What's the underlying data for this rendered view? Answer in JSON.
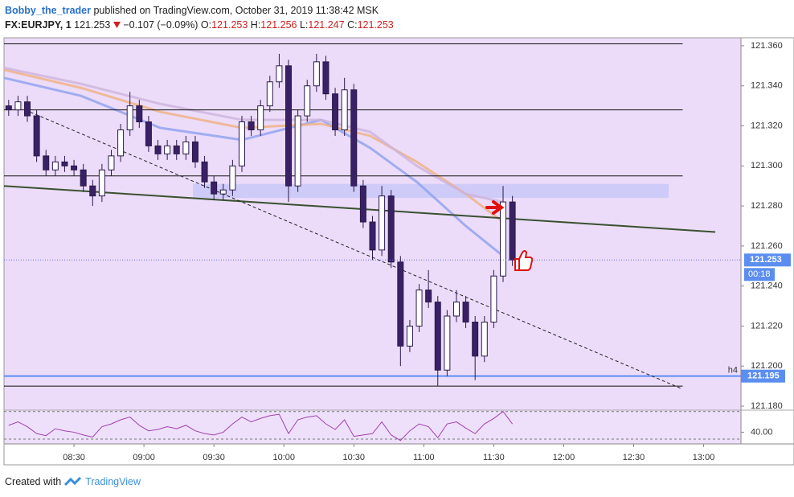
{
  "header": {
    "author": "Bobby_the_trader",
    "published": "published on TradingView.com, October 31, 2019 11:38:42 MSK"
  },
  "chart_data": [
    {
      "type": "candlestick",
      "symbol": "FX:EURJPY, 1",
      "last": 121.253,
      "change": "−0.107 (−0.09%)",
      "ohlc_summary": [
        {
          "label": "O:",
          "value": 121.253
        },
        {
          "label": "H:",
          "value": 121.256
        },
        {
          "label": "L:",
          "value": 121.247
        },
        {
          "label": "C:",
          "value": 121.253
        }
      ],
      "x": [
        482,
        486,
        490,
        494,
        498,
        502,
        506,
        510,
        514,
        518,
        522,
        526,
        530,
        534,
        538,
        542,
        546,
        550,
        554,
        558,
        562,
        566,
        570,
        574,
        578,
        582,
        586,
        590,
        594,
        598,
        602,
        606,
        610,
        614,
        618,
        622,
        626,
        630,
        634,
        638,
        642,
        646,
        650,
        654,
        658,
        662,
        666,
        670,
        674,
        678,
        682,
        686,
        690,
        694,
        698
      ],
      "open": [
        121.33,
        121.328,
        121.332,
        121.325,
        121.305,
        121.298,
        121.302,
        121.3,
        121.298,
        121.29,
        121.285,
        121.298,
        121.305,
        121.318,
        121.33,
        121.322,
        121.31,
        121.306,
        121.31,
        121.306,
        121.312,
        121.302,
        121.292,
        121.286,
        121.288,
        121.3,
        121.322,
        121.318,
        121.33,
        121.342,
        121.35,
        121.29,
        121.325,
        121.34,
        121.352,
        121.336,
        121.318,
        121.338,
        121.29,
        121.272,
        121.258,
        121.285,
        121.252,
        121.21,
        121.22,
        121.238,
        121.232,
        121.198,
        121.225,
        121.232,
        121.222,
        121.205,
        121.222,
        121.245,
        121.282
      ],
      "high": [
        121.333,
        121.335,
        121.335,
        121.328,
        121.308,
        121.305,
        121.305,
        121.303,
        121.301,
        121.293,
        121.301,
        121.308,
        121.321,
        121.337,
        121.333,
        121.325,
        121.313,
        121.313,
        121.313,
        121.315,
        121.315,
        121.305,
        121.295,
        121.291,
        121.303,
        121.325,
        121.325,
        121.333,
        121.345,
        121.356,
        121.353,
        121.328,
        121.343,
        121.356,
        121.355,
        121.339,
        121.344,
        121.341,
        121.293,
        121.275,
        121.29,
        121.288,
        121.255,
        121.223,
        121.241,
        121.248,
        121.235,
        121.228,
        121.238,
        121.235,
        121.225,
        121.225,
        121.248,
        121.29,
        121.285
      ],
      "low": [
        121.325,
        121.325,
        121.322,
        121.302,
        121.295,
        121.295,
        121.297,
        121.295,
        121.287,
        121.28,
        121.282,
        121.295,
        121.302,
        121.315,
        121.319,
        121.307,
        121.303,
        121.303,
        121.303,
        121.303,
        121.299,
        121.289,
        121.283,
        121.283,
        121.285,
        121.297,
        121.315,
        121.315,
        121.327,
        121.339,
        121.282,
        121.287,
        121.322,
        121.337,
        121.333,
        121.315,
        121.315,
        121.287,
        121.269,
        121.253,
        121.255,
        121.249,
        121.2,
        121.207,
        121.217,
        121.229,
        121.19,
        121.195,
        121.222,
        121.219,
        121.193,
        121.202,
        121.219,
        121.242,
        121.25
      ],
      "close": [
        121.328,
        121.332,
        121.325,
        121.305,
        121.298,
        121.302,
        121.3,
        121.298,
        121.29,
        121.285,
        121.298,
        121.305,
        121.318,
        121.33,
        121.322,
        121.31,
        121.306,
        121.31,
        121.306,
        121.312,
        121.302,
        121.292,
        121.286,
        121.288,
        121.3,
        121.322,
        121.318,
        121.33,
        121.342,
        121.35,
        121.29,
        121.325,
        121.34,
        121.352,
        121.336,
        121.318,
        121.338,
        121.29,
        121.272,
        121.258,
        121.285,
        121.252,
        121.21,
        121.22,
        121.238,
        121.232,
        121.198,
        121.225,
        121.232,
        121.222,
        121.205,
        121.222,
        121.245,
        121.282,
        121.253
      ],
      "up_color": "#ffffff",
      "down_color": "#3a2066",
      "wick_color": "#2a1a4a",
      "moving_averages": [
        {
          "color": "#8fa0ee",
          "x": [
            480,
            513,
            547,
            582,
            616,
            637,
            657,
            678,
            694
          ],
          "values": [
            121.344,
            121.335,
            121.319,
            121.313,
            121.323,
            121.309,
            121.292,
            121.27,
            121.255
          ]
        },
        {
          "color": "#f0b080",
          "x": [
            480,
            513,
            547,
            582,
            616,
            637,
            657,
            678,
            694
          ],
          "values": [
            121.348,
            121.339,
            121.327,
            121.319,
            121.321,
            121.315,
            121.302,
            121.286,
            121.272
          ]
        },
        {
          "color": "#cdb3dc",
          "x": [
            480,
            513,
            547,
            582,
            616,
            637,
            657,
            678,
            694
          ],
          "values": [
            121.349,
            121.341,
            121.331,
            121.323,
            121.323,
            121.317,
            121.3,
            121.286,
            121.282
          ]
        }
      ],
      "levels": [
        {
          "value": 121.361,
          "x": [
            480,
            771
          ]
        },
        {
          "value": 121.328,
          "x": [
            480,
            771
          ]
        },
        {
          "value": 121.295,
          "x": [
            480,
            771
          ]
        },
        {
          "value": 121.19,
          "x": [
            480,
            771
          ]
        }
      ],
      "key_level": {
        "name": "h4",
        "value": 121.195,
        "color": "#5b8ef0"
      },
      "zone": {
        "x": [
          561,
          765
        ],
        "y": [
          121.284,
          121.291
        ],
        "color": "#c9c8f7"
      },
      "trendlines": [
        {
          "x": [
            480,
            785
          ],
          "y": [
            121.29,
            121.267
          ],
          "color": "#3a5030",
          "dashed": false
        },
        {
          "x": [
            489,
            770
          ],
          "y": [
            121.328,
            121.189
          ],
          "color": "#222222",
          "dashed": true
        }
      ],
      "countdown": "00:18",
      "xlim": [
        480,
        796
      ],
      "xticks": [
        {
          "value": 510,
          "label": "08:30"
        },
        {
          "value": 540,
          "label": "09:00"
        },
        {
          "value": 570,
          "label": "09:30"
        },
        {
          "value": 600,
          "label": "10:00"
        },
        {
          "value": 630,
          "label": "10:30"
        },
        {
          "value": 660,
          "label": "11:00"
        },
        {
          "value": 690,
          "label": "11:30"
        },
        {
          "value": 720,
          "label": "12:00"
        },
        {
          "value": 750,
          "label": "12:30"
        },
        {
          "value": 780,
          "label": "13:00"
        }
      ],
      "ylim": [
        121.178,
        121.364
      ],
      "yticks": [
        {
          "value": 121.18,
          "label": "121.180"
        },
        {
          "value": 121.2,
          "label": "121.200"
        },
        {
          "value": 121.22,
          "label": "121.220"
        },
        {
          "value": 121.24,
          "label": "121.240"
        },
        {
          "value": 121.26,
          "label": "121.260"
        },
        {
          "value": 121.28,
          "label": "121.280"
        },
        {
          "value": 121.3,
          "label": "121.300"
        },
        {
          "value": 121.32,
          "label": "121.320"
        },
        {
          "value": 121.34,
          "label": "121.340"
        },
        {
          "value": 121.36,
          "label": "121.360"
        }
      ],
      "grid": false
    },
    {
      "type": "line",
      "color": "#a040b0",
      "x": [
        482,
        486,
        490,
        494,
        498,
        502,
        506,
        510,
        514,
        518,
        522,
        526,
        530,
        534,
        538,
        542,
        546,
        550,
        554,
        558,
        562,
        566,
        570,
        574,
        578,
        582,
        586,
        590,
        594,
        598,
        602,
        606,
        610,
        614,
        618,
        622,
        626,
        630,
        634,
        638,
        642,
        646,
        650,
        654,
        658,
        662,
        666,
        670,
        674,
        678,
        682,
        686,
        690,
        694,
        698
      ],
      "values": [
        50,
        55,
        48,
        38,
        35,
        45,
        42,
        40,
        36,
        33,
        48,
        52,
        58,
        62,
        50,
        42,
        44,
        48,
        45,
        50,
        42,
        38,
        36,
        40,
        52,
        62,
        55,
        60,
        64,
        66,
        38,
        58,
        62,
        64,
        52,
        44,
        58,
        34,
        36,
        38,
        55,
        36,
        28,
        42,
        52,
        48,
        32,
        52,
        55,
        46,
        38,
        52,
        60,
        70,
        52
      ],
      "bands": [
        70,
        30
      ],
      "xlim": [
        480,
        796
      ],
      "ylim": [
        23,
        72
      ],
      "yticks": [
        {
          "value": 40,
          "label": "40.00"
        }
      ]
    }
  ],
  "footer": {
    "text": "Created with",
    "brand": "TradingView"
  }
}
